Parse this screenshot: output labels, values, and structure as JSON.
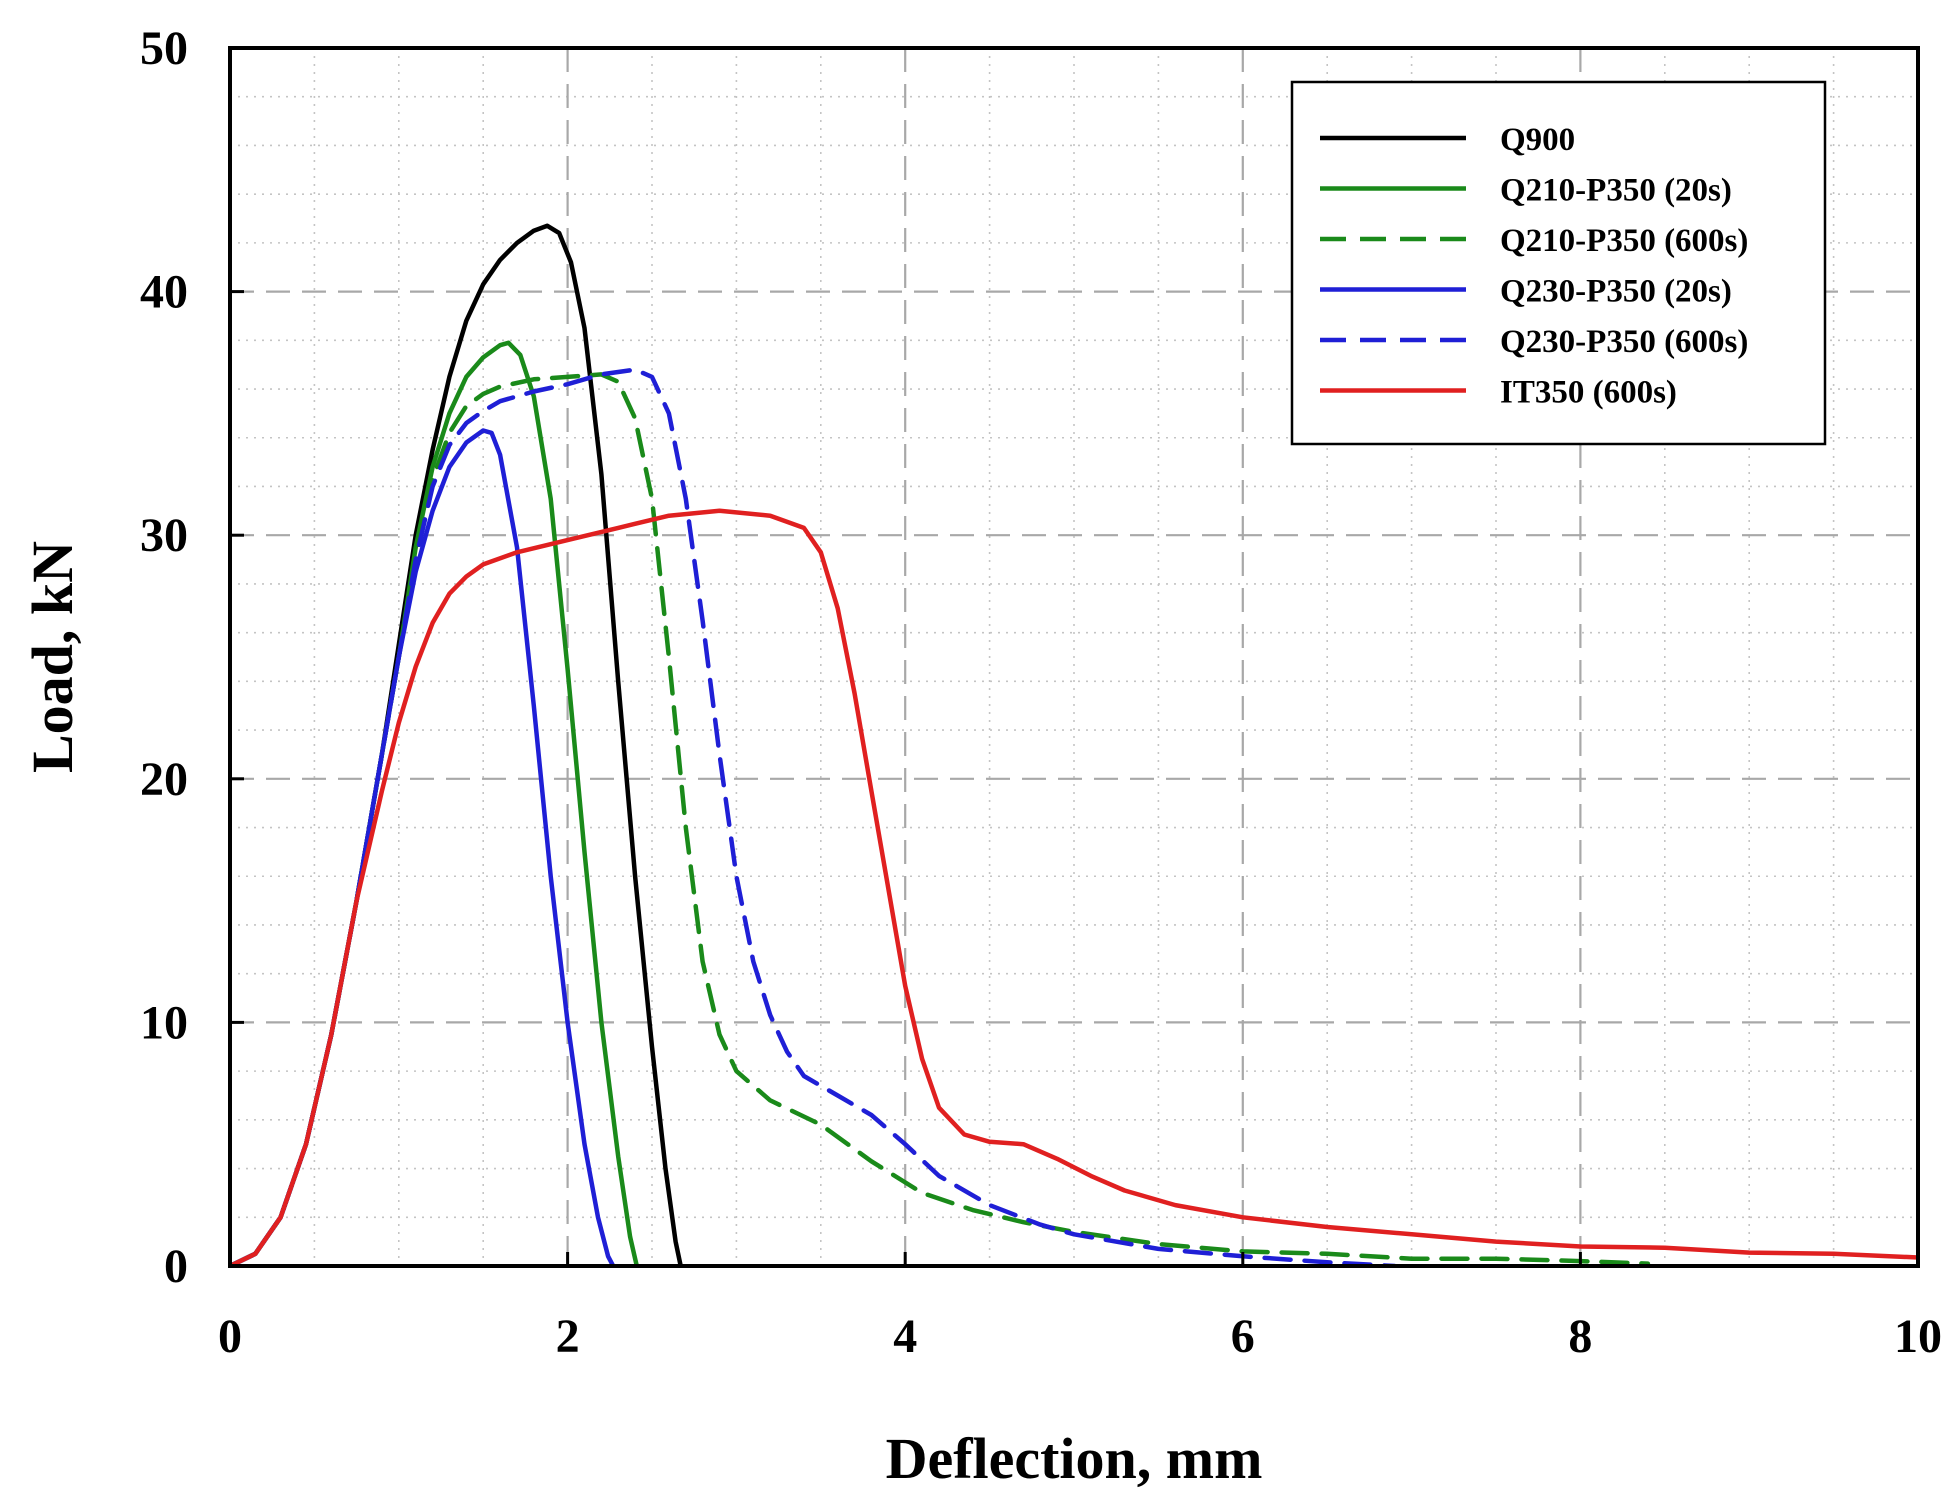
{
  "chart_data": {
    "type": "line",
    "title": "",
    "xlabel": "Deflection, mm",
    "ylabel": "Load, kN",
    "xlim": [
      0,
      10
    ],
    "ylim": [
      0,
      50
    ],
    "x_major_ticks": [
      0,
      2,
      4,
      6,
      8,
      10
    ],
    "y_major_ticks": [
      0,
      10,
      20,
      30,
      40,
      50
    ],
    "x_minor_step": 0.5,
    "y_minor_step": 2,
    "grid": true,
    "legend_position": "top-right",
    "series": [
      {
        "name": "Q900",
        "color": "#000000",
        "dash": "solid",
        "points": [
          [
            0,
            0
          ],
          [
            0.15,
            0.5
          ],
          [
            0.3,
            2
          ],
          [
            0.45,
            5
          ],
          [
            0.6,
            9.5
          ],
          [
            0.75,
            15
          ],
          [
            0.9,
            21
          ],
          [
            1.0,
            25.5
          ],
          [
            1.1,
            30
          ],
          [
            1.2,
            33.5
          ],
          [
            1.3,
            36.5
          ],
          [
            1.4,
            38.8
          ],
          [
            1.5,
            40.3
          ],
          [
            1.6,
            41.3
          ],
          [
            1.7,
            42
          ],
          [
            1.8,
            42.5
          ],
          [
            1.88,
            42.7
          ],
          [
            1.95,
            42.4
          ],
          [
            2.02,
            41.2
          ],
          [
            2.1,
            38.5
          ],
          [
            2.2,
            32.5
          ],
          [
            2.3,
            24
          ],
          [
            2.4,
            16
          ],
          [
            2.5,
            9
          ],
          [
            2.58,
            4
          ],
          [
            2.64,
            1
          ],
          [
            2.67,
            0
          ]
        ]
      },
      {
        "name": "Q210-P350 (20s)",
        "color": "#1a8a1a",
        "dash": "solid",
        "points": [
          [
            0,
            0
          ],
          [
            0.15,
            0.5
          ],
          [
            0.3,
            2
          ],
          [
            0.45,
            5
          ],
          [
            0.6,
            9.5
          ],
          [
            0.75,
            15
          ],
          [
            0.9,
            21
          ],
          [
            1.0,
            25
          ],
          [
            1.1,
            29.5
          ],
          [
            1.2,
            32.8
          ],
          [
            1.3,
            35
          ],
          [
            1.4,
            36.5
          ],
          [
            1.5,
            37.3
          ],
          [
            1.6,
            37.8
          ],
          [
            1.65,
            37.9
          ],
          [
            1.72,
            37.4
          ],
          [
            1.8,
            35.7
          ],
          [
            1.9,
            31.5
          ],
          [
            2.0,
            24.5
          ],
          [
            2.1,
            17
          ],
          [
            2.2,
            10
          ],
          [
            2.3,
            4.5
          ],
          [
            2.37,
            1.2
          ],
          [
            2.41,
            0
          ]
        ]
      },
      {
        "name": "Q210-P350 (600s)",
        "color": "#1a8a1a",
        "dash": "dashed",
        "points": [
          [
            0,
            0
          ],
          [
            0.15,
            0.5
          ],
          [
            0.3,
            2
          ],
          [
            0.45,
            5
          ],
          [
            0.6,
            9.5
          ],
          [
            0.75,
            15
          ],
          [
            0.9,
            21
          ],
          [
            1.0,
            25
          ],
          [
            1.1,
            29
          ],
          [
            1.2,
            32.3
          ],
          [
            1.3,
            34.2
          ],
          [
            1.4,
            35.3
          ],
          [
            1.5,
            35.8
          ],
          [
            1.6,
            36.1
          ],
          [
            1.8,
            36.4
          ],
          [
            2.0,
            36.5
          ],
          [
            2.2,
            36.6
          ],
          [
            2.3,
            36.3
          ],
          [
            2.4,
            34.8
          ],
          [
            2.5,
            31.5
          ],
          [
            2.6,
            25
          ],
          [
            2.7,
            18
          ],
          [
            2.8,
            12.5
          ],
          [
            2.9,
            9.5
          ],
          [
            3.0,
            8
          ],
          [
            3.2,
            6.8
          ],
          [
            3.5,
            5.8
          ],
          [
            3.8,
            4.3
          ],
          [
            4.1,
            3
          ],
          [
            4.4,
            2.3
          ],
          [
            4.7,
            1.8
          ],
          [
            5.0,
            1.4
          ],
          [
            5.5,
            0.9
          ],
          [
            6.0,
            0.6
          ],
          [
            6.5,
            0.5
          ],
          [
            7.0,
            0.3
          ],
          [
            7.5,
            0.3
          ],
          [
            8.0,
            0.2
          ],
          [
            8.4,
            0.1
          ]
        ]
      },
      {
        "name": "Q230-P350 (20s)",
        "color": "#1f1fd6",
        "dash": "solid",
        "points": [
          [
            0,
            0
          ],
          [
            0.15,
            0.5
          ],
          [
            0.3,
            2
          ],
          [
            0.45,
            5
          ],
          [
            0.6,
            9.5
          ],
          [
            0.75,
            15
          ],
          [
            0.9,
            21
          ],
          [
            1.0,
            25
          ],
          [
            1.1,
            28.5
          ],
          [
            1.2,
            31
          ],
          [
            1.3,
            32.8
          ],
          [
            1.4,
            33.8
          ],
          [
            1.5,
            34.3
          ],
          [
            1.55,
            34.2
          ],
          [
            1.6,
            33.3
          ],
          [
            1.7,
            29.5
          ],
          [
            1.8,
            23
          ],
          [
            1.9,
            16
          ],
          [
            2.0,
            10
          ],
          [
            2.1,
            5
          ],
          [
            2.18,
            2
          ],
          [
            2.24,
            0.4
          ],
          [
            2.27,
            0
          ]
        ]
      },
      {
        "name": "Q230-P350 (600s)",
        "color": "#1f1fd6",
        "dash": "dashed",
        "points": [
          [
            0,
            0
          ],
          [
            0.15,
            0.5
          ],
          [
            0.3,
            2
          ],
          [
            0.45,
            5
          ],
          [
            0.6,
            9.5
          ],
          [
            0.75,
            15
          ],
          [
            0.9,
            21
          ],
          [
            1.0,
            25
          ],
          [
            1.1,
            29
          ],
          [
            1.2,
            32
          ],
          [
            1.3,
            33.7
          ],
          [
            1.4,
            34.6
          ],
          [
            1.5,
            35.1
          ],
          [
            1.6,
            35.5
          ],
          [
            1.8,
            35.9
          ],
          [
            2.0,
            36.2
          ],
          [
            2.2,
            36.6
          ],
          [
            2.4,
            36.8
          ],
          [
            2.5,
            36.5
          ],
          [
            2.6,
            35
          ],
          [
            2.7,
            31.5
          ],
          [
            2.8,
            26.5
          ],
          [
            2.9,
            21
          ],
          [
            3.0,
            16
          ],
          [
            3.1,
            12.5
          ],
          [
            3.2,
            10.3
          ],
          [
            3.3,
            8.8
          ],
          [
            3.4,
            7.8
          ],
          [
            3.6,
            7
          ],
          [
            3.8,
            6.2
          ],
          [
            4.0,
            5
          ],
          [
            4.2,
            3.7
          ],
          [
            4.5,
            2.5
          ],
          [
            4.8,
            1.7
          ],
          [
            5.0,
            1.3
          ],
          [
            5.5,
            0.7
          ],
          [
            6.0,
            0.4
          ],
          [
            6.5,
            0.15
          ],
          [
            6.9,
            0
          ]
        ]
      },
      {
        "name": "IT350 (600s)",
        "color": "#e02020",
        "dash": "solid",
        "points": [
          [
            0,
            0
          ],
          [
            0.15,
            0.5
          ],
          [
            0.3,
            2
          ],
          [
            0.45,
            5
          ],
          [
            0.6,
            9.5
          ],
          [
            0.75,
            15
          ],
          [
            0.9,
            19.5
          ],
          [
            1.0,
            22.3
          ],
          [
            1.1,
            24.6
          ],
          [
            1.2,
            26.4
          ],
          [
            1.3,
            27.6
          ],
          [
            1.4,
            28.3
          ],
          [
            1.5,
            28.8
          ],
          [
            1.7,
            29.3
          ],
          [
            2.0,
            29.8
          ],
          [
            2.3,
            30.3
          ],
          [
            2.6,
            30.8
          ],
          [
            2.9,
            31
          ],
          [
            3.2,
            30.8
          ],
          [
            3.4,
            30.3
          ],
          [
            3.5,
            29.3
          ],
          [
            3.6,
            27
          ],
          [
            3.7,
            23.5
          ],
          [
            3.8,
            19.5
          ],
          [
            3.9,
            15.5
          ],
          [
            4.0,
            11.5
          ],
          [
            4.1,
            8.5
          ],
          [
            4.2,
            6.5
          ],
          [
            4.35,
            5.4
          ],
          [
            4.5,
            5.1
          ],
          [
            4.7,
            5
          ],
          [
            4.9,
            4.4
          ],
          [
            5.1,
            3.7
          ],
          [
            5.3,
            3.1
          ],
          [
            5.6,
            2.5
          ],
          [
            6.0,
            2
          ],
          [
            6.5,
            1.6
          ],
          [
            7.0,
            1.3
          ],
          [
            7.5,
            1
          ],
          [
            8.0,
            0.8
          ],
          [
            8.5,
            0.75
          ],
          [
            9.0,
            0.55
          ],
          [
            9.5,
            0.5
          ],
          [
            10.0,
            0.35
          ]
        ]
      }
    ]
  }
}
